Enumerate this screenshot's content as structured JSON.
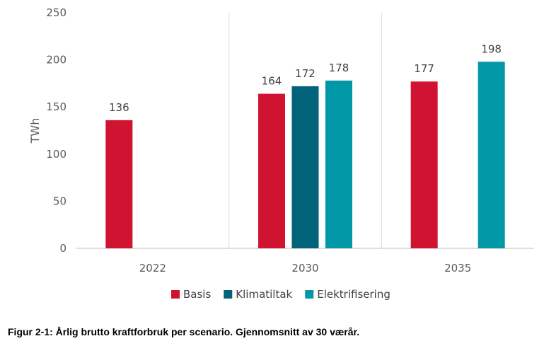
{
  "chart_data": {
    "type": "bar",
    "categories": [
      "2022",
      "2030",
      "2035"
    ],
    "series": [
      {
        "name": "Basis",
        "color": "#d01331",
        "values": [
          136,
          164,
          177
        ]
      },
      {
        "name": "Klimatiltak",
        "color": "#00637a",
        "values": [
          null,
          172,
          null
        ]
      },
      {
        "name": "Elektrifisering",
        "color": "#0097a7",
        "values": [
          null,
          178,
          198
        ]
      }
    ],
    "ylabel": "TWh",
    "ylim": [
      0,
      250
    ],
    "yticks": [
      0,
      50,
      100,
      150,
      200,
      250
    ],
    "legend_position": "bottom",
    "grid": false,
    "category_separators": true
  },
  "caption": "Figur 2-1: Årlig brutto kraftforbruk per scenario. Gjennomsnitt av 30 værår."
}
